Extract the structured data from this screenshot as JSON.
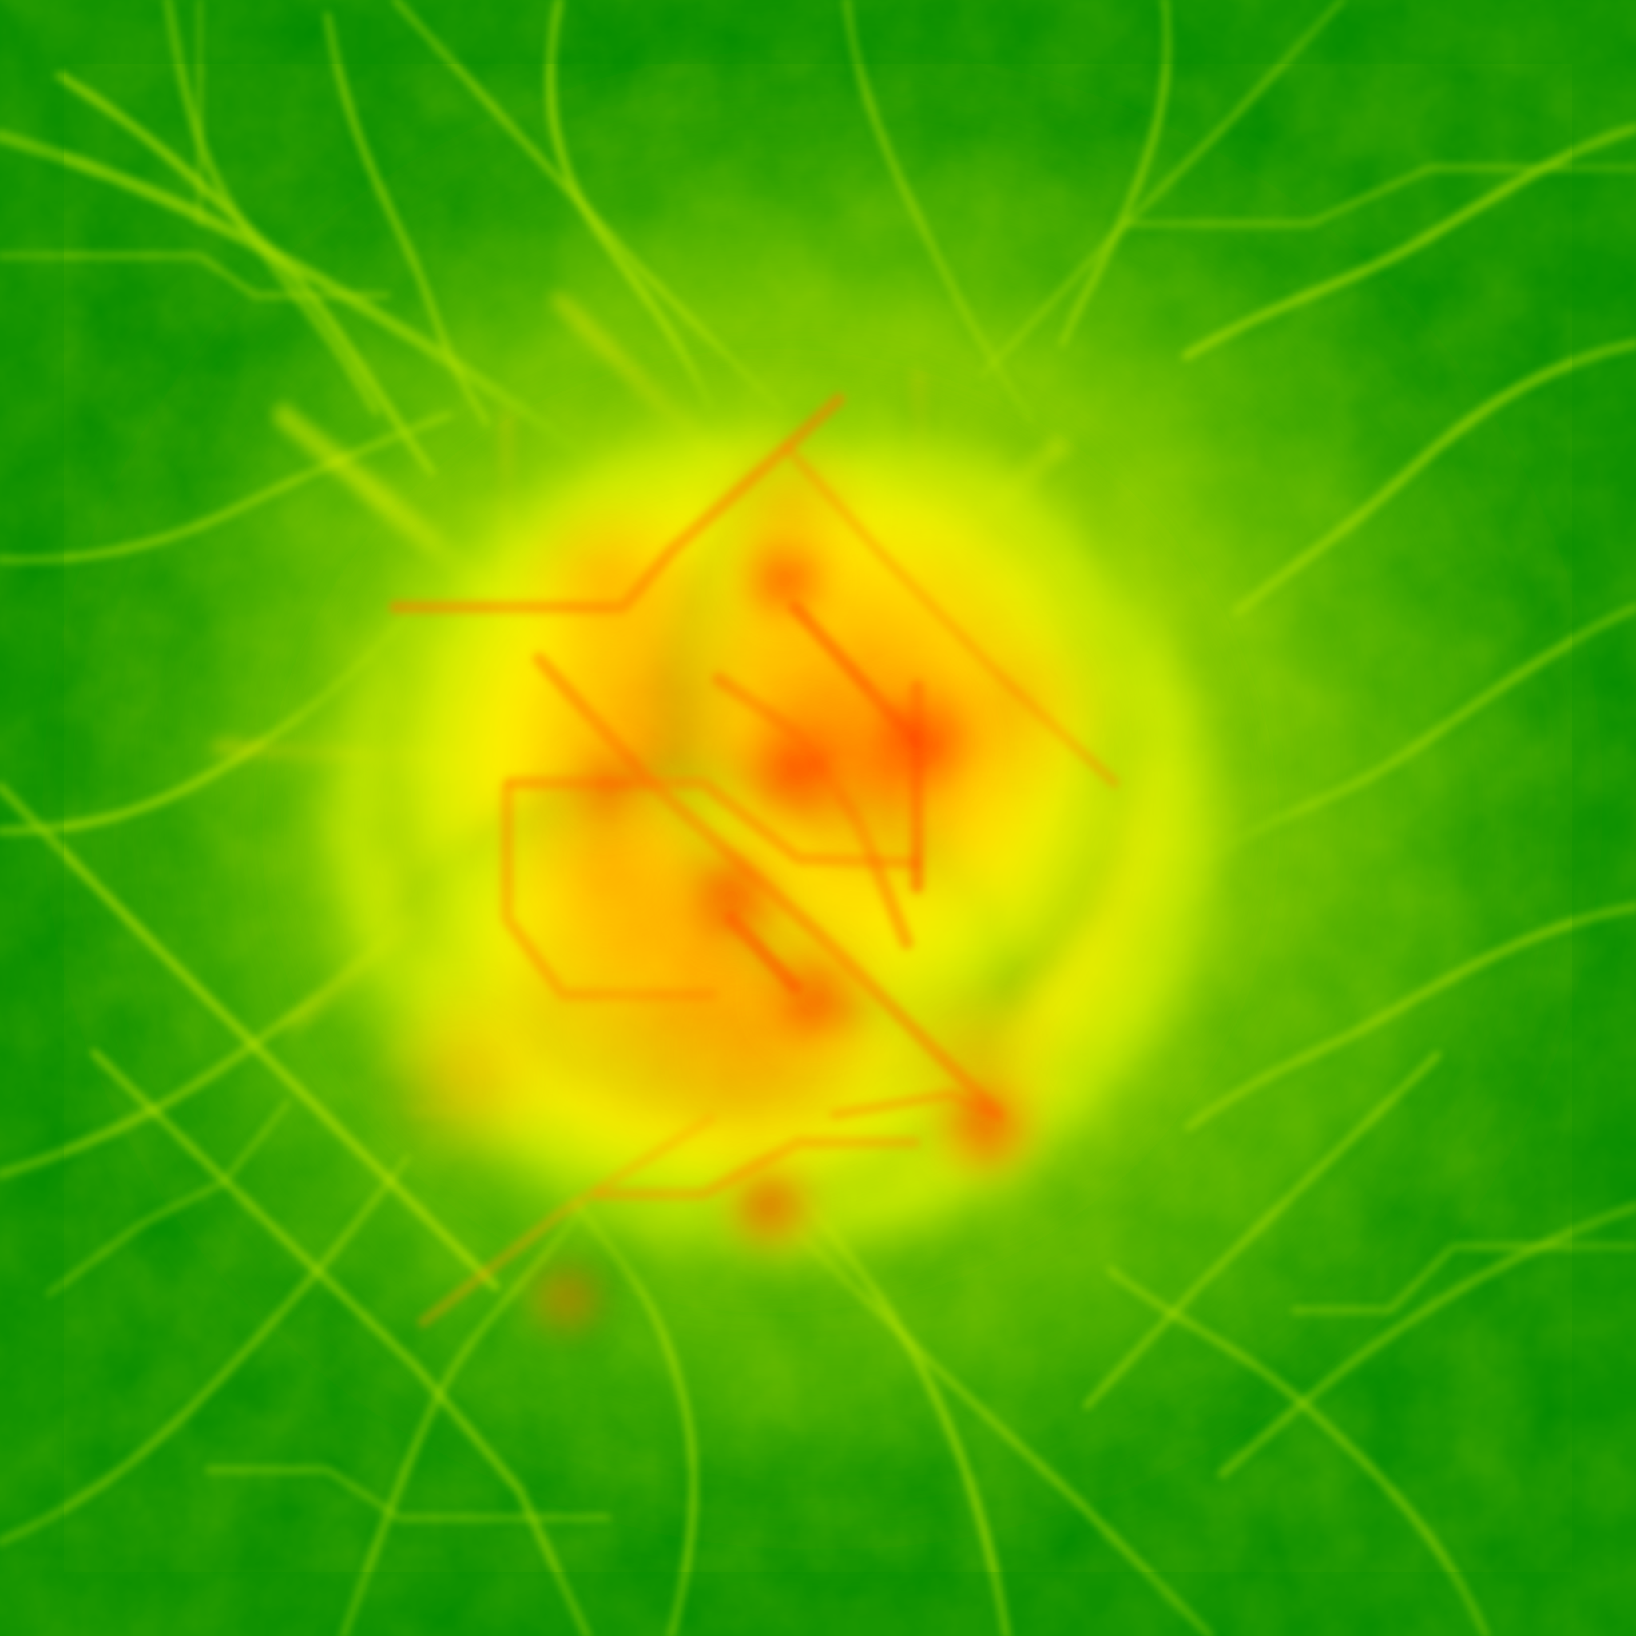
{
  "image": {
    "kind": "heat-map texture",
    "palette": {
      "background": "#008a00",
      "low": "#138f00",
      "mid_low": "#7acc00",
      "mid": "#ffff00",
      "mid_high": "#ffcc00",
      "high": "#ff9a00",
      "peak": "#ff1a00"
    }
  }
}
